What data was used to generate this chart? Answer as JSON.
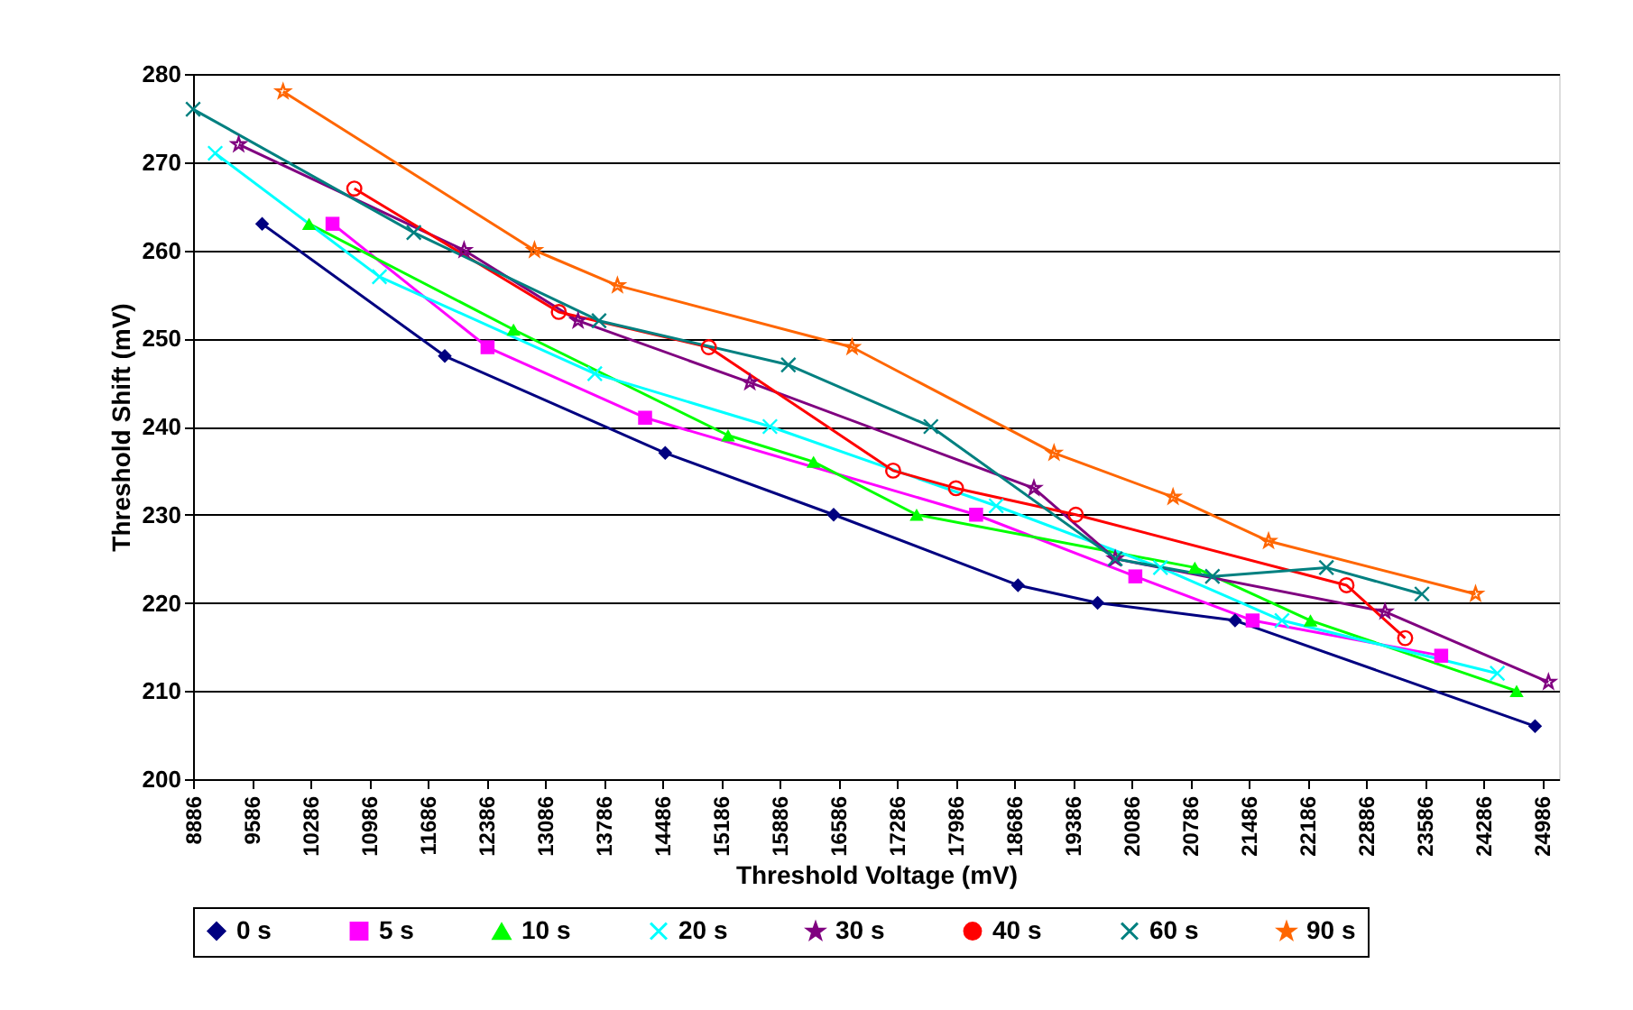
{
  "chart_data": {
    "type": "line",
    "xlabel": "Threshold Voltage  (mV)",
    "ylabel": "Threshold Shift (mV)",
    "xlim": [
      8886,
      25186
    ],
    "xticks": [
      8886,
      9586,
      10286,
      10986,
      11686,
      12386,
      13086,
      13786,
      14486,
      15186,
      15886,
      16586,
      17286,
      17986,
      18686,
      19386,
      20086,
      20786,
      21486,
      22186,
      22886,
      23586,
      24286,
      24986
    ],
    "ylim": [
      200,
      280
    ],
    "yticks": [
      200,
      210,
      220,
      230,
      240,
      250,
      260,
      270,
      280
    ],
    "grid": "y",
    "legend": "bottom",
    "line_style": "solid",
    "series": [
      {
        "name": "0 s",
        "color": "#000080",
        "marker": "diamond",
        "x": [
          9710,
          11890,
          14520,
          16530,
          18730,
          19680,
          21320,
          24900
        ],
        "values": [
          263,
          248,
          237,
          230,
          222,
          220,
          218,
          206
        ]
      },
      {
        "name": "5 s",
        "color": "#ff00ff",
        "marker": "square",
        "x": [
          10550,
          12400,
          14280,
          18230,
          20130,
          21530,
          23780
        ],
        "values": [
          263,
          249,
          241,
          230,
          223,
          218,
          214
        ]
      },
      {
        "name": "10 s",
        "color": "#00ff00",
        "marker": "triangle",
        "x": [
          10270,
          12710,
          15270,
          16290,
          17520,
          20840,
          22220,
          24680
        ],
        "values": [
          263,
          251,
          239,
          236,
          230,
          224,
          218,
          210
        ]
      },
      {
        "name": "20 s",
        "color": "#00ffff",
        "marker": "cross",
        "x": [
          9150,
          11110,
          13680,
          15770,
          18470,
          20430,
          21880,
          24450
        ],
        "values": [
          271,
          257,
          246,
          240,
          231,
          224,
          218,
          212
        ]
      },
      {
        "name": "30 s",
        "color": "#800080",
        "marker": "star",
        "x": [
          9430,
          12120,
          13480,
          15530,
          18920,
          19890,
          23110,
          25060
        ],
        "values": [
          272,
          260,
          252,
          245,
          233,
          225,
          219,
          211
        ]
      },
      {
        "name": "40 s",
        "color": "#ff0000",
        "marker": "circle",
        "x": [
          10810,
          13250,
          15040,
          17240,
          17990,
          19420,
          22650,
          23350
        ],
        "values": [
          267,
          253,
          249,
          235,
          233,
          230,
          222,
          216
        ]
      },
      {
        "name": "60 s",
        "color": "#008080",
        "marker": "cross",
        "x": [
          8886,
          11520,
          13730,
          15990,
          17690,
          19890,
          21050,
          22410,
          23550
        ],
        "values": [
          276,
          262,
          252,
          247,
          240,
          225,
          223,
          224,
          221
        ]
      },
      {
        "name": "90 s",
        "color": "#ff6600",
        "marker": "star",
        "x": [
          9960,
          12960,
          13950,
          16750,
          19160,
          20580,
          21720,
          24190
        ],
        "values": [
          278,
          260,
          256,
          249,
          237,
          232,
          227,
          221
        ]
      }
    ]
  }
}
